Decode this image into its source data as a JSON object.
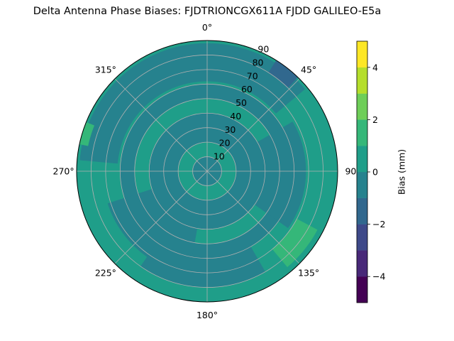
{
  "chart_data": {
    "type": "heatmap",
    "subtype": "polar-filled-contour",
    "title": "Delta Antenna Phase Biases: FJDTRIONCGX611A FJDD GALILEO-E5a",
    "theta_direction": "clockwise",
    "theta_zero": "top",
    "theta_ticks": [
      0,
      45,
      90,
      135,
      180,
      225,
      270,
      315
    ],
    "theta_tick_labels": [
      "0°",
      "45°",
      "90",
      "135°",
      "180°",
      "225°",
      "270°",
      "315°"
    ],
    "r_ticks": [
      10,
      20,
      30,
      40,
      50,
      60,
      70,
      80,
      90
    ],
    "r_tick_labels": [
      "10",
      "20",
      "30",
      "40",
      "50",
      "60",
      "70",
      "80",
      "90"
    ],
    "r_lim": [
      0,
      90
    ],
    "grid": true,
    "colorbar": {
      "label": "Bias (mm)",
      "levels": [
        -5,
        -4,
        -3,
        -2,
        -1,
        0,
        1,
        2,
        3,
        4,
        5
      ],
      "ticks": [
        -4,
        -2,
        0,
        2,
        4
      ],
      "tick_labels": [
        "−4",
        "−2",
        "0",
        "2",
        "4"
      ],
      "colors": [
        "#440154",
        "#482878",
        "#3e4989",
        "#31688e",
        "#26828e",
        "#1f9e89",
        "#35b779",
        "#6ece58",
        "#b5de2b",
        "#fde725"
      ]
    },
    "regions": [
      {
        "name": "background",
        "level": [
          0,
          1
        ]
      },
      {
        "name": "center-ring",
        "level": [
          -1,
          0
        ],
        "theta": [
          0,
          360
        ],
        "r": [
          0,
          10
        ]
      },
      {
        "name": "ring-20-40",
        "level": [
          -1,
          0
        ],
        "theta": [
          0,
          360
        ],
        "r": [
          20,
          40
        ]
      },
      {
        "name": "ring-50-60",
        "level": [
          -1,
          0
        ],
        "theta": [
          0,
          360
        ],
        "r": [
          50,
          60
        ]
      },
      {
        "name": "north-patch",
        "level": [
          -1,
          0
        ],
        "theta": [
          275,
          50
        ],
        "r": [
          62,
          88
        ]
      },
      {
        "name": "ne-patch",
        "level": [
          -2,
          -1
        ],
        "theta": [
          32,
          44
        ],
        "r": [
          80,
          90
        ]
      },
      {
        "name": "east-lobe",
        "level": [
          -1,
          0
        ],
        "theta": [
          60,
          125
        ],
        "r": [
          28,
          68
        ]
      },
      {
        "name": "sw-lobe",
        "level": [
          -1,
          0
        ],
        "theta": [
          190,
          252
        ],
        "r": [
          28,
          72
        ]
      },
      {
        "name": "south-band",
        "level": [
          -1,
          0
        ],
        "theta": [
          150,
          215
        ],
        "r": [
          60,
          80
        ]
      },
      {
        "name": "se-patch",
        "level": [
          1,
          2
        ],
        "theta": [
          118,
          140
        ],
        "r": [
          70,
          86
        ]
      },
      {
        "name": "west-patch",
        "level": [
          1,
          2
        ],
        "theta": [
          282,
          292
        ],
        "r": [
          84,
          90
        ]
      }
    ]
  }
}
